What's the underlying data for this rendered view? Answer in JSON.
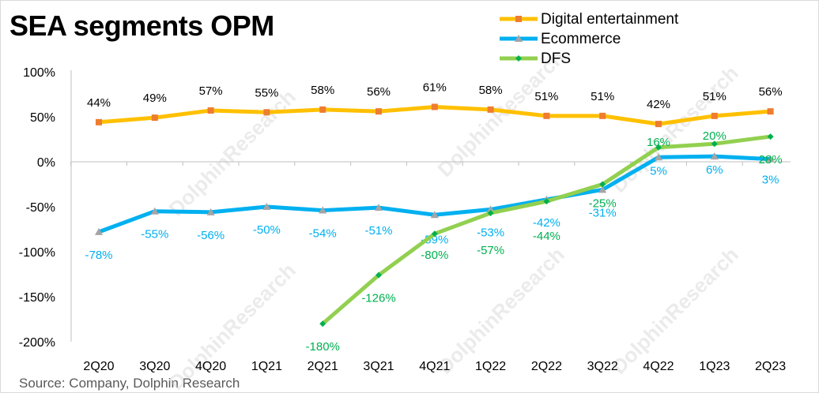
{
  "title": "SEA segments OPM",
  "source": "Source: Company, Dolphin Research",
  "watermark": "DolphinResearch",
  "chart_data": {
    "type": "line",
    "title": "SEA segments OPM",
    "categories": [
      "2Q20",
      "3Q20",
      "4Q20",
      "1Q21",
      "2Q21",
      "3Q21",
      "4Q21",
      "1Q22",
      "2Q22",
      "3Q22",
      "4Q22",
      "1Q23",
      "2Q23"
    ],
    "ylim": [
      -200,
      100
    ],
    "yticks": [
      100,
      50,
      0,
      -50,
      -100,
      -150,
      -200
    ],
    "ytick_labels": [
      "100%",
      "50%",
      "0%",
      "-50%",
      "-100%",
      "-150%",
      "-200%"
    ],
    "legend_position": "top-right",
    "grid": false,
    "series": [
      {
        "name": "Digital entertainment",
        "color": "#FFC000",
        "marker": "square",
        "marker_color": "#ED7D31",
        "values": [
          44,
          49,
          57,
          55,
          58,
          56,
          61,
          58,
          51,
          51,
          42,
          51,
          56
        ],
        "labels": [
          "44%",
          "49%",
          "57%",
          "55%",
          "58%",
          "56%",
          "61%",
          "58%",
          "51%",
          "51%",
          "42%",
          "51%",
          "56%"
        ],
        "label_color": "#000000"
      },
      {
        "name": "Ecommerce",
        "color": "#00B0F0",
        "marker": "triangle",
        "marker_color": "#A5A5A5",
        "values": [
          -78,
          -55,
          -56,
          -50,
          -54,
          -51,
          -59,
          -53,
          -42,
          -31,
          5,
          6,
          3
        ],
        "labels": [
          "-78%",
          "-55%",
          "-56%",
          "-50%",
          "-54%",
          "-51%",
          "-59%",
          "-53%",
          "-42%",
          "-31%",
          "5%",
          "6%",
          "3%"
        ],
        "label_color": "#00B0F0"
      },
      {
        "name": "DFS",
        "color": "#92D050",
        "marker": "diamond",
        "marker_color": "#00B050",
        "values": [
          null,
          null,
          null,
          null,
          -180,
          -126,
          -80,
          -57,
          -44,
          -25,
          16,
          20,
          28
        ],
        "labels": [
          "",
          "",
          "",
          "",
          "-180%",
          "-126%",
          "-80%",
          "-57%",
          "-44%",
          "-25%",
          "16%",
          "20%",
          "28%"
        ],
        "label_color": "#00B050"
      }
    ]
  }
}
